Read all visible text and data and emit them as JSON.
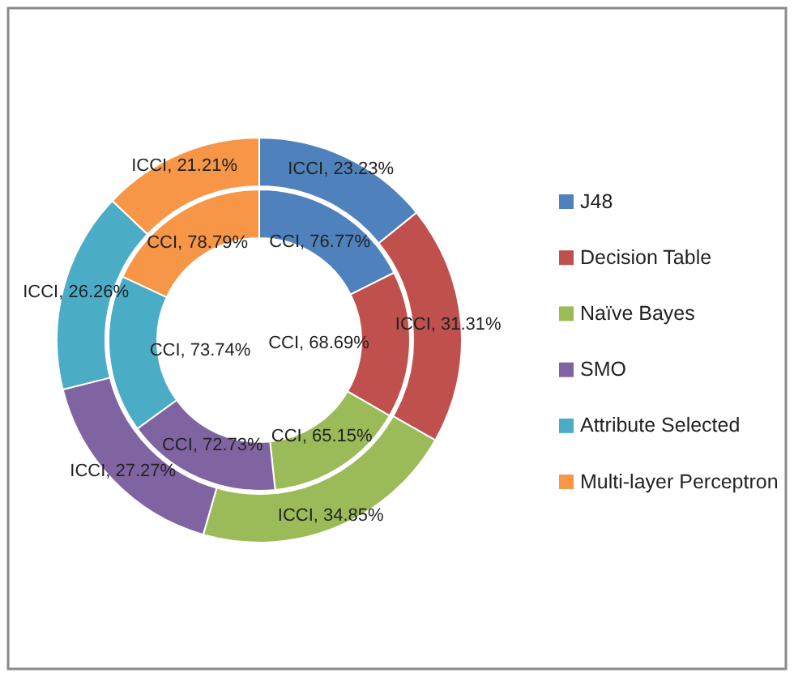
{
  "chart_data": {
    "type": "donut",
    "categories": [
      "J48",
      "Decision Table",
      "Naïve Bayes",
      "SMO",
      "Attribute Selected",
      "Multi-layer Perceptron"
    ],
    "colors": [
      "#4f81bd",
      "#c0504d",
      "#9bbb59",
      "#8064a2",
      "#4bacc6",
      "#f79646"
    ],
    "series": [
      {
        "values": [
          76.77,
          68.69,
          65.15,
          72.73,
          73.74,
          78.79
        ],
        "value_labels": [
          "CCI, 76.77%",
          "CCI, 68.69%",
          "CCI, 65.15%",
          "CCI, 72.73%",
          "CCI, 73.74%",
          "CCI, 78.79%"
        ]
      },
      {
        "values": [
          23.23,
          31.31,
          34.85,
          27.27,
          26.26,
          21.21
        ],
        "value_labels": [
          "ICCI, 23.23%",
          "ICCI, 31.31%",
          "ICCI, 34.85%",
          "ICCI, 27.27%",
          "ICCI, 26.26%",
          "ICCI, 21.21%"
        ]
      }
    ],
    "legend": "right"
  }
}
